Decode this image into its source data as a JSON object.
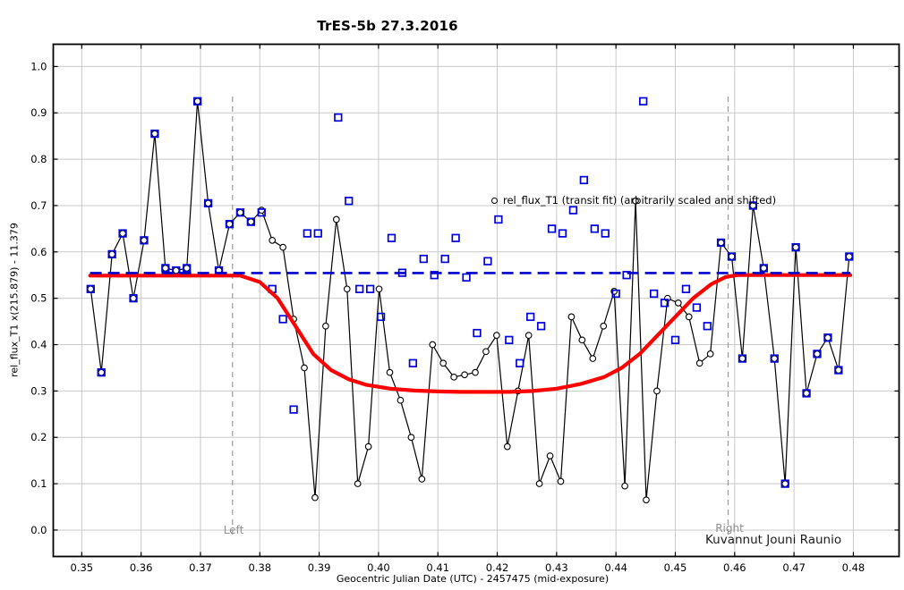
{
  "window": {
    "background": "#ffffff"
  },
  "chart_data": {
    "type": "scatter",
    "title": "TrES-5b 27.3.2016",
    "xlabel": "Geocentric Julian Date (UTC) - 2457475 (mid-exposure)",
    "ylabel": "rel_flux_T1 x(215.879) - 11.379",
    "xlim": [
      0.3452,
      0.4877
    ],
    "ylim": [
      -0.057,
      1.048
    ],
    "xticks": {
      "start": 0.35,
      "end": 0.48,
      "step": 0.01,
      "decimals": 2
    },
    "yticks": {
      "start": 0.0,
      "end": 1.0,
      "step": 0.1,
      "decimals": 1
    },
    "grid": true,
    "legend": {
      "label": "rel_flux_T1 (transit fit) (arbitrarily scaled and shifted)",
      "marker": "open-circle"
    },
    "annotations": {
      "left_label": "Left",
      "right_label": "Right",
      "credit": "Kuvannut Jouni Raunio",
      "left_line_x": 0.3754,
      "right_line_x": 0.4589
    },
    "baseline": {
      "y": 0.5545,
      "color": "#0000cc",
      "style": "dashed",
      "x_start": 0.3514,
      "x_end": 0.4795
    },
    "series": [
      {
        "name": "rel_flux_T1",
        "marker": "open-circle",
        "color": "#000000",
        "connected": true,
        "points": [
          [
            0.3515,
            0.52
          ],
          [
            0.3533,
            0.34
          ],
          [
            0.3551,
            0.595
          ],
          [
            0.3569,
            0.64
          ],
          [
            0.3587,
            0.5
          ],
          [
            0.3605,
            0.625
          ],
          [
            0.3623,
            0.855
          ],
          [
            0.3641,
            0.565
          ],
          [
            0.3659,
            0.56
          ],
          [
            0.3677,
            0.565
          ],
          [
            0.3695,
            0.925
          ],
          [
            0.3713,
            0.705
          ],
          [
            0.3731,
            0.56
          ],
          [
            0.3749,
            0.66
          ],
          [
            0.3767,
            0.685
          ],
          [
            0.3785,
            0.665
          ],
          [
            0.3803,
            0.69
          ],
          [
            0.3821,
            0.625
          ],
          [
            0.3839,
            0.61
          ],
          [
            0.3857,
            0.455
          ],
          [
            0.3875,
            0.35
          ],
          [
            0.3893,
            0.07
          ],
          [
            0.3911,
            0.44
          ],
          [
            0.3929,
            0.67
          ],
          [
            0.3947,
            0.52
          ],
          [
            0.3965,
            0.1
          ],
          [
            0.3983,
            0.18
          ],
          [
            0.4001,
            0.52
          ],
          [
            0.4019,
            0.34
          ],
          [
            0.4037,
            0.28
          ],
          [
            0.4055,
            0.2
          ],
          [
            0.4073,
            0.11
          ],
          [
            0.4091,
            0.4
          ],
          [
            0.4109,
            0.36
          ],
          [
            0.4127,
            0.33
          ],
          [
            0.4145,
            0.335
          ],
          [
            0.4163,
            0.34
          ],
          [
            0.4181,
            0.385
          ],
          [
            0.4199,
            0.42
          ],
          [
            0.4217,
            0.18
          ],
          [
            0.4235,
            0.3
          ],
          [
            0.4253,
            0.42
          ],
          [
            0.4271,
            0.1
          ],
          [
            0.4289,
            0.16
          ],
          [
            0.4307,
            0.105
          ],
          [
            0.4325,
            0.46
          ],
          [
            0.4343,
            0.41
          ],
          [
            0.4361,
            0.37
          ],
          [
            0.4379,
            0.44
          ],
          [
            0.4397,
            0.515
          ],
          [
            0.4415,
            0.095
          ],
          [
            0.4433,
            0.71
          ],
          [
            0.4451,
            0.065
          ],
          [
            0.4469,
            0.3
          ],
          [
            0.4487,
            0.5
          ],
          [
            0.4505,
            0.49
          ],
          [
            0.4523,
            0.46
          ],
          [
            0.4541,
            0.36
          ],
          [
            0.4559,
            0.38
          ],
          [
            0.4577,
            0.62
          ],
          [
            0.4595,
            0.59
          ],
          [
            0.4613,
            0.37
          ],
          [
            0.4631,
            0.7
          ],
          [
            0.4649,
            0.565
          ],
          [
            0.4667,
            0.37
          ],
          [
            0.4685,
            0.1
          ],
          [
            0.4703,
            0.61
          ],
          [
            0.4721,
            0.295
          ],
          [
            0.4739,
            0.38
          ],
          [
            0.4757,
            0.415
          ],
          [
            0.4775,
            0.345
          ],
          [
            0.4793,
            0.59
          ]
        ]
      },
      {
        "name": "rel_flux_detrended",
        "marker": "open-square",
        "color": "#0000dd",
        "connected": false,
        "points": [
          [
            0.3515,
            0.52
          ],
          [
            0.3533,
            0.34
          ],
          [
            0.3551,
            0.595
          ],
          [
            0.3569,
            0.64
          ],
          [
            0.3587,
            0.5
          ],
          [
            0.3605,
            0.625
          ],
          [
            0.3623,
            0.855
          ],
          [
            0.3641,
            0.565
          ],
          [
            0.3659,
            0.56
          ],
          [
            0.3677,
            0.565
          ],
          [
            0.3695,
            0.925
          ],
          [
            0.3713,
            0.705
          ],
          [
            0.3731,
            0.56
          ],
          [
            0.3749,
            0.66
          ],
          [
            0.3767,
            0.685
          ],
          [
            0.3785,
            0.665
          ],
          [
            0.3803,
            0.685
          ],
          [
            0.3821,
            0.52
          ],
          [
            0.3839,
            0.455
          ],
          [
            0.3857,
            0.26
          ],
          [
            0.388,
            0.64
          ],
          [
            0.3898,
            0.64
          ],
          [
            0.3932,
            0.89
          ],
          [
            0.395,
            0.71
          ],
          [
            0.3968,
            0.52
          ],
          [
            0.3986,
            0.52
          ],
          [
            0.4004,
            0.46
          ],
          [
            0.4022,
            0.63
          ],
          [
            0.404,
            0.555
          ],
          [
            0.4058,
            0.36
          ],
          [
            0.4076,
            0.585
          ],
          [
            0.4094,
            0.55
          ],
          [
            0.4112,
            0.585
          ],
          [
            0.413,
            0.63
          ],
          [
            0.4148,
            0.545
          ],
          [
            0.4166,
            0.425
          ],
          [
            0.4184,
            0.58
          ],
          [
            0.4202,
            0.67
          ],
          [
            0.422,
            0.41
          ],
          [
            0.4238,
            0.36
          ],
          [
            0.4256,
            0.46
          ],
          [
            0.4274,
            0.44
          ],
          [
            0.4292,
            0.65
          ],
          [
            0.431,
            0.64
          ],
          [
            0.4328,
            0.69
          ],
          [
            0.4346,
            0.755
          ],
          [
            0.4364,
            0.65
          ],
          [
            0.4382,
            0.64
          ],
          [
            0.44,
            0.51
          ],
          [
            0.4418,
            0.55
          ],
          [
            0.4446,
            0.925
          ],
          [
            0.4464,
            0.51
          ],
          [
            0.4482,
            0.49
          ],
          [
            0.45,
            0.41
          ],
          [
            0.4518,
            0.52
          ],
          [
            0.4536,
            0.48
          ],
          [
            0.4554,
            0.44
          ],
          [
            0.4577,
            0.62
          ],
          [
            0.4595,
            0.59
          ],
          [
            0.4613,
            0.37
          ],
          [
            0.4631,
            0.7
          ],
          [
            0.4649,
            0.565
          ],
          [
            0.4667,
            0.37
          ],
          [
            0.4685,
            0.1
          ],
          [
            0.4703,
            0.61
          ],
          [
            0.4721,
            0.295
          ],
          [
            0.4739,
            0.38
          ],
          [
            0.4757,
            0.415
          ],
          [
            0.4775,
            0.345
          ],
          [
            0.4793,
            0.59
          ]
        ]
      },
      {
        "name": "transit_fit",
        "marker": "none",
        "color": "#ff0000",
        "connected": true,
        "points": [
          [
            0.3514,
            0.549
          ],
          [
            0.3767,
            0.549
          ],
          [
            0.38,
            0.535
          ],
          [
            0.383,
            0.5
          ],
          [
            0.386,
            0.44
          ],
          [
            0.389,
            0.38
          ],
          [
            0.392,
            0.345
          ],
          [
            0.395,
            0.325
          ],
          [
            0.398,
            0.313
          ],
          [
            0.402,
            0.305
          ],
          [
            0.406,
            0.301
          ],
          [
            0.41,
            0.299
          ],
          [
            0.414,
            0.298
          ],
          [
            0.418,
            0.298
          ],
          [
            0.422,
            0.298
          ],
          [
            0.426,
            0.3
          ],
          [
            0.43,
            0.305
          ],
          [
            0.434,
            0.315
          ],
          [
            0.438,
            0.33
          ],
          [
            0.441,
            0.35
          ],
          [
            0.444,
            0.38
          ],
          [
            0.447,
            0.42
          ],
          [
            0.45,
            0.46
          ],
          [
            0.453,
            0.5
          ],
          [
            0.456,
            0.53
          ],
          [
            0.4585,
            0.546
          ],
          [
            0.4605,
            0.55
          ],
          [
            0.4795,
            0.55
          ]
        ]
      }
    ],
    "colors": {
      "grid": "#c9c9c9",
      "border": "#000000",
      "fit_line": "#ff0000",
      "baseline_dash": "#0000cc",
      "squares": "#0000dd",
      "flux_line": "#000000",
      "marker_lines": "#9a9a9a",
      "marker_label_text": "#8f8f8f",
      "credit_text": "#1c1c1c"
    }
  }
}
